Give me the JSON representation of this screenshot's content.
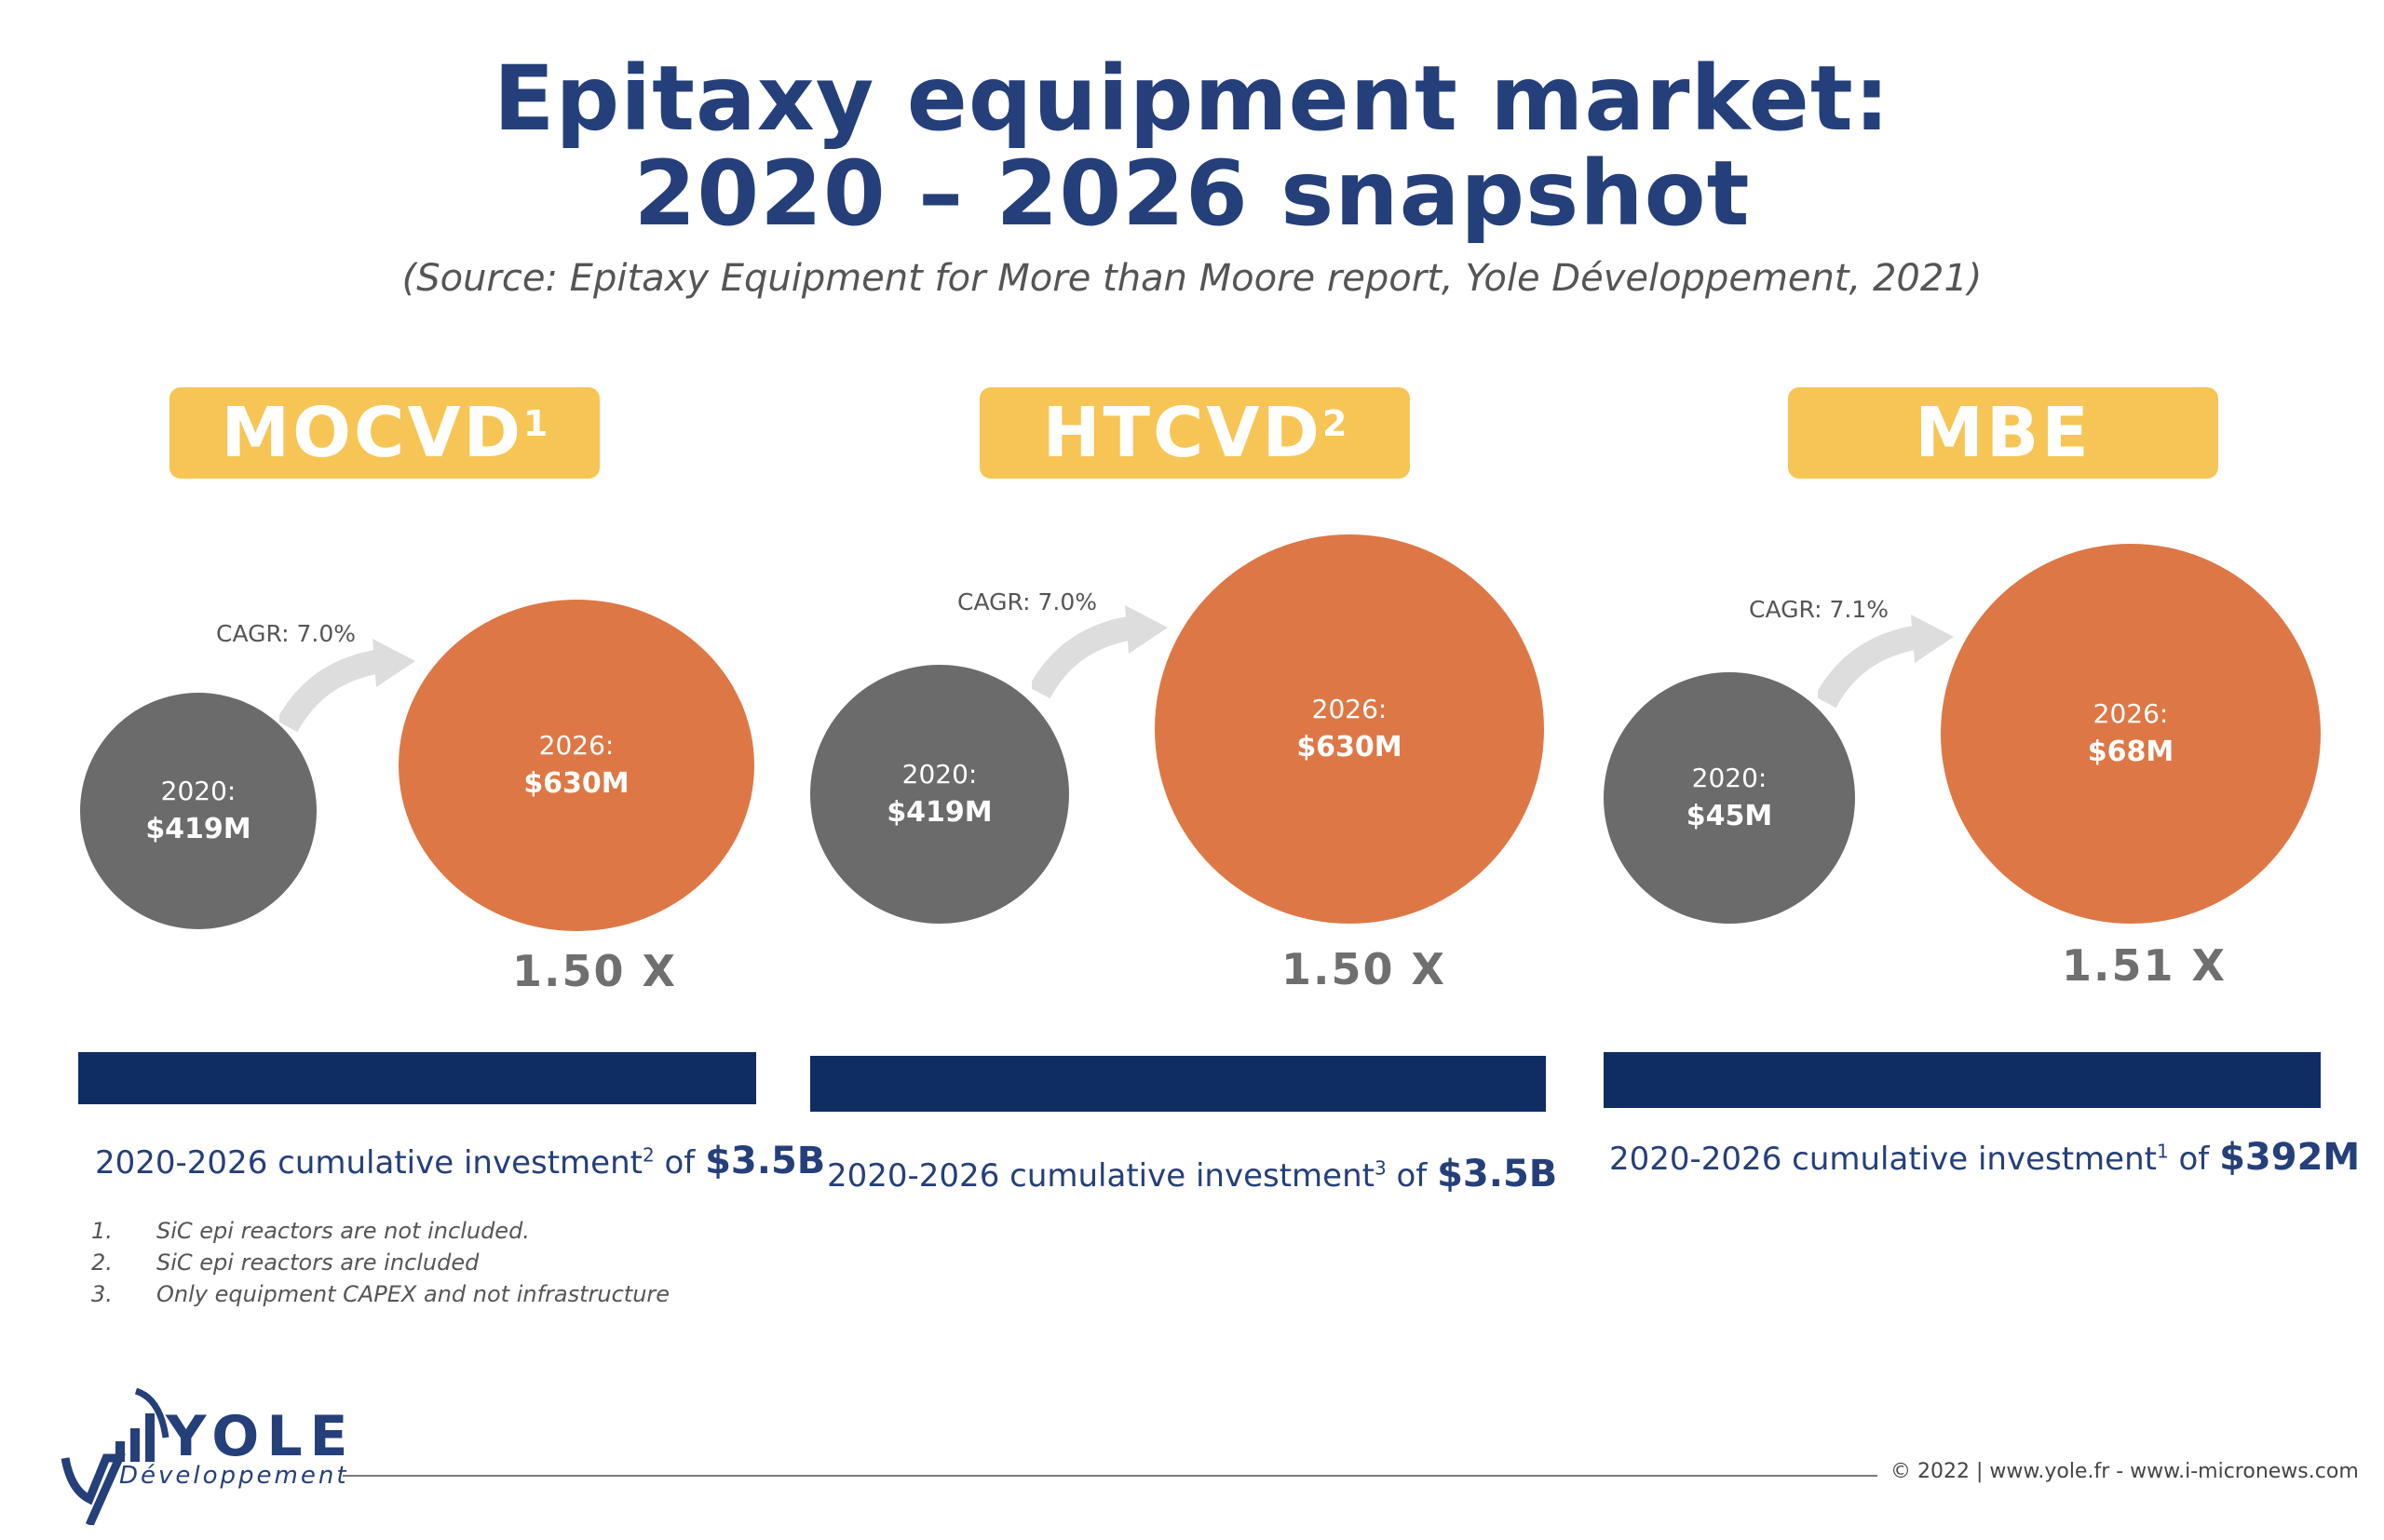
{
  "header": {
    "title_line1": "Epitaxy equipment market:",
    "title_line2": "2020 – 2026 snapshot",
    "source": "(Source: Epitaxy Equipment for More than Moore report, Yole Développement, 2021)"
  },
  "chart_data": [
    {
      "type": "bubble",
      "segment": "MOCVD",
      "footnote_ref": "1",
      "categories": [
        "2020",
        "2026"
      ],
      "values": [
        419,
        630
      ],
      "unit": "$M",
      "labels": {
        "y2020": "2020:",
        "v2020": "$419M",
        "y2026": "2026:",
        "v2026": "$630M"
      },
      "cagr": "CAGR: 7.0%",
      "multiplier": "1.50 X",
      "investment_text": "2020-2026 cumulative investment",
      "investment_ref": "2",
      "investment_of": " of ",
      "investment_value": "$3.5B"
    },
    {
      "type": "bubble",
      "segment": "HTCVD",
      "footnote_ref": "2",
      "categories": [
        "2020",
        "2026"
      ],
      "values": [
        419,
        630
      ],
      "unit": "$M",
      "labels": {
        "y2020": "2020:",
        "v2020": "$419M",
        "y2026": "2026:",
        "v2026": "$630M"
      },
      "cagr": "CAGR: 7.0%",
      "multiplier": "1.50 X",
      "investment_text": "2020-2026 cumulative investment",
      "investment_ref": "3",
      "investment_of": " of ",
      "investment_value": "$3.5B"
    },
    {
      "type": "bubble",
      "segment": "MBE",
      "footnote_ref": "",
      "categories": [
        "2020",
        "2026"
      ],
      "values": [
        45,
        68
      ],
      "unit": "$M",
      "labels": {
        "y2020": "2020:",
        "v2020": "$45M",
        "y2026": "2026:",
        "v2026": "$68M"
      },
      "cagr": "CAGR: 7.1%",
      "multiplier": "1.51 X",
      "investment_text": "2020-2026 cumulative investment",
      "investment_ref": "1",
      "investment_of": " of ",
      "investment_value": "$392M"
    }
  ],
  "footnotes": [
    {
      "num": "1.",
      "text": "SiC epi reactors are not included."
    },
    {
      "num": "2.",
      "text": "SiC epi reactors are included"
    },
    {
      "num": "3.",
      "text": "Only equipment CAPEX and not infrastructure"
    }
  ],
  "footer": {
    "logo_word": "YOLE",
    "logo_sub": "Développement",
    "copyright": "© 2022 | www.yole.fr - www.i-micronews.com"
  },
  "colors": {
    "title": "#253f7a",
    "badge": "#f6c555",
    "circle_2020": "#6b6b6b",
    "circle_2026": "#dd7846",
    "bar": "#0f2d62"
  }
}
